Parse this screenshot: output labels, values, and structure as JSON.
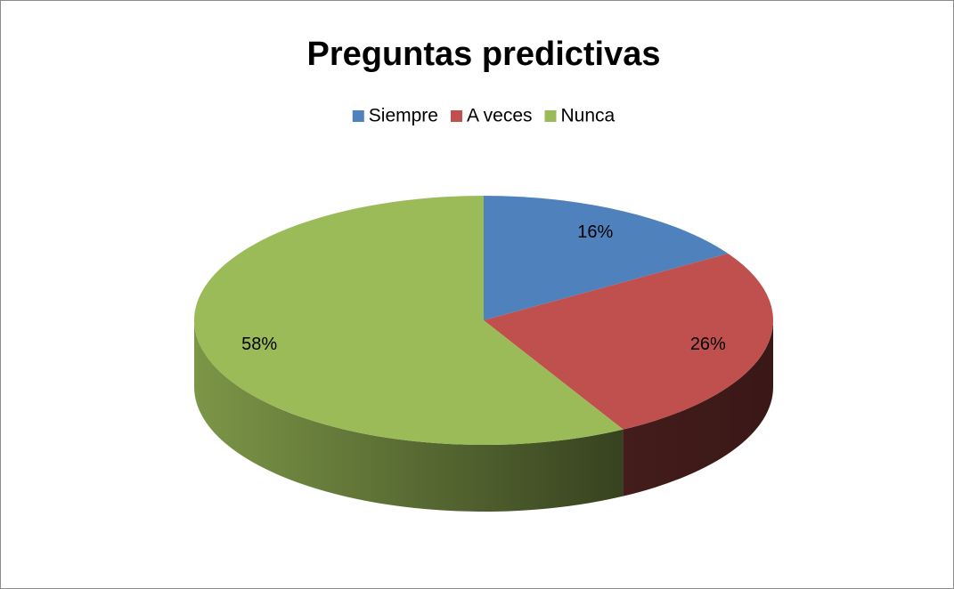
{
  "chart_data": {
    "type": "pie",
    "title": "Preguntas predictivas",
    "categories": [
      "Siempre",
      "A veces",
      "Nunca"
    ],
    "values": [
      16,
      26,
      58
    ],
    "value_labels": [
      "16%",
      "26%",
      "58%"
    ],
    "colors": [
      "#4f81bd",
      "#c0504d",
      "#9bbb59"
    ],
    "legend": "top"
  }
}
